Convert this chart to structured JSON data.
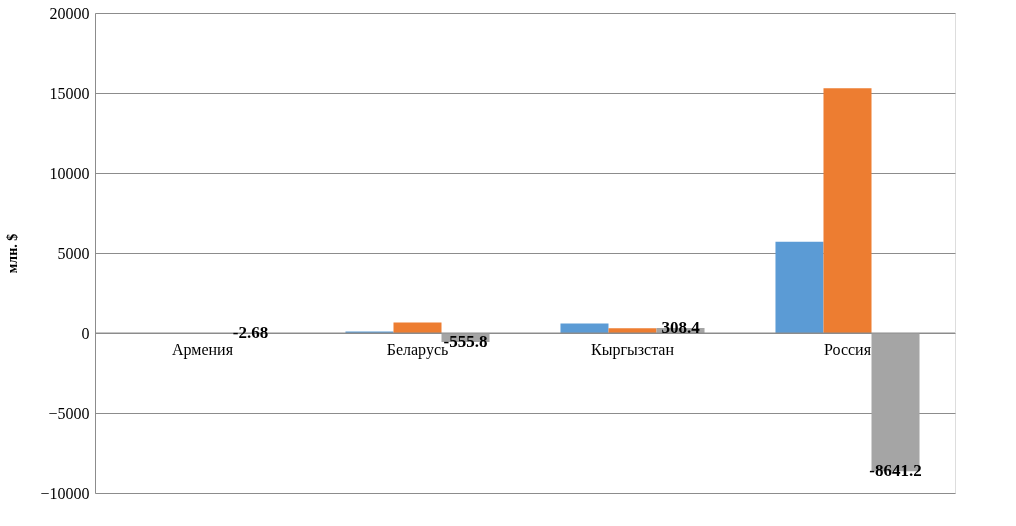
{
  "chart_data": {
    "type": "bar",
    "ylabel": "млн. $",
    "categories": [
      "Армения",
      "Беларусь",
      "Кыргызстан",
      "Россия"
    ],
    "series": [
      {
        "color": "#5b9bd5",
        "values": [
          null,
          100,
          600,
          5700
        ]
      },
      {
        "color": "#ed7d31",
        "values": [
          null,
          650,
          300,
          15300
        ]
      },
      {
        "color": "#a5a5a5",
        "values": [
          -2.68,
          -555.8,
          308.4,
          -8641.2
        ],
        "value_labels": [
          "-2.68",
          "-555.8",
          "308.4",
          "-8641.2"
        ]
      }
    ],
    "ylim": [
      -10000,
      20000
    ],
    "yticks": [
      -10000,
      -5000,
      0,
      5000,
      10000,
      15000,
      20000
    ],
    "grid": "y",
    "legend": false
  }
}
